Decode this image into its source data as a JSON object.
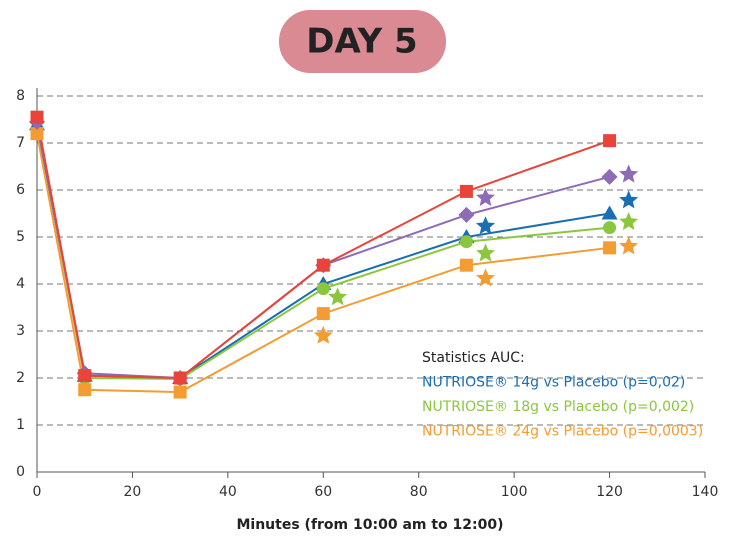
{
  "chart_data": {
    "type": "line",
    "title": "DAY 5",
    "x_label": "Minutes (from 10:00 am to 12:00)",
    "xlim": [
      0,
      140
    ],
    "xticks": [
      0,
      20,
      40,
      60,
      80,
      100,
      120,
      140
    ],
    "ylim": [
      0,
      8
    ],
    "yticks": [
      0,
      1,
      2,
      3,
      4,
      5,
      6,
      7,
      8
    ],
    "grid": true,
    "series": [
      {
        "color": "#1a6fb0",
        "marker": "triangle",
        "x": [
          0,
          10,
          30,
          60,
          90,
          120
        ],
        "values": [
          7.4,
          2.05,
          2.0,
          4.0,
          5.0,
          5.5
        ]
      },
      {
        "color": "#8cc63f",
        "marker": "circle",
        "x": [
          0,
          10,
          30,
          60,
          90,
          120
        ],
        "values": [
          7.5,
          2.0,
          1.98,
          3.9,
          4.9,
          5.2
        ]
      },
      {
        "color": "#f39c32",
        "marker": "square",
        "x": [
          0,
          10,
          30,
          60,
          90,
          120
        ],
        "values": [
          7.2,
          1.75,
          1.7,
          3.37,
          4.4,
          4.77
        ]
      },
      {
        "color": "#8e6bb5",
        "marker": "diamond",
        "x": [
          0,
          10,
          30,
          60,
          90,
          120
        ],
        "values": [
          7.45,
          2.1,
          2.0,
          4.4,
          5.47,
          6.28
        ]
      },
      {
        "color": "#e8443a",
        "marker": "square",
        "x": [
          0,
          10,
          30,
          60,
          90,
          120
        ],
        "values": [
          7.55,
          2.05,
          2.0,
          4.4,
          5.97,
          7.05
        ]
      }
    ],
    "star_markers": [
      {
        "color": "#8e6bb5",
        "x": [
          94,
          124
        ],
        "values": [
          5.83,
          6.33
        ]
      },
      {
        "color": "#1a6fb0",
        "x": [
          94,
          124
        ],
        "values": [
          5.23,
          5.78
        ]
      },
      {
        "color": "#8cc63f",
        "x": [
          63,
          94,
          124
        ],
        "values": [
          3.72,
          4.65,
          5.32
        ]
      },
      {
        "color": "#f39c32",
        "x": [
          60,
          94,
          124
        ],
        "values": [
          2.9,
          4.12,
          4.8
        ]
      }
    ],
    "annotations": [
      {
        "text": "Statistics AUC:",
        "color": "#222222"
      },
      {
        "text": "NUTRIOSE® 14g vs Placebo (p=0,02)",
        "color": "#1a6fb0"
      },
      {
        "text": "NUTRIOSE® 18g vs Placebo (p=0,002)",
        "color": "#8cc63f"
      },
      {
        "text": "NUTRIOSE® 24g vs Placebo (p=0,0003)",
        "color": "#f39c32"
      }
    ]
  }
}
